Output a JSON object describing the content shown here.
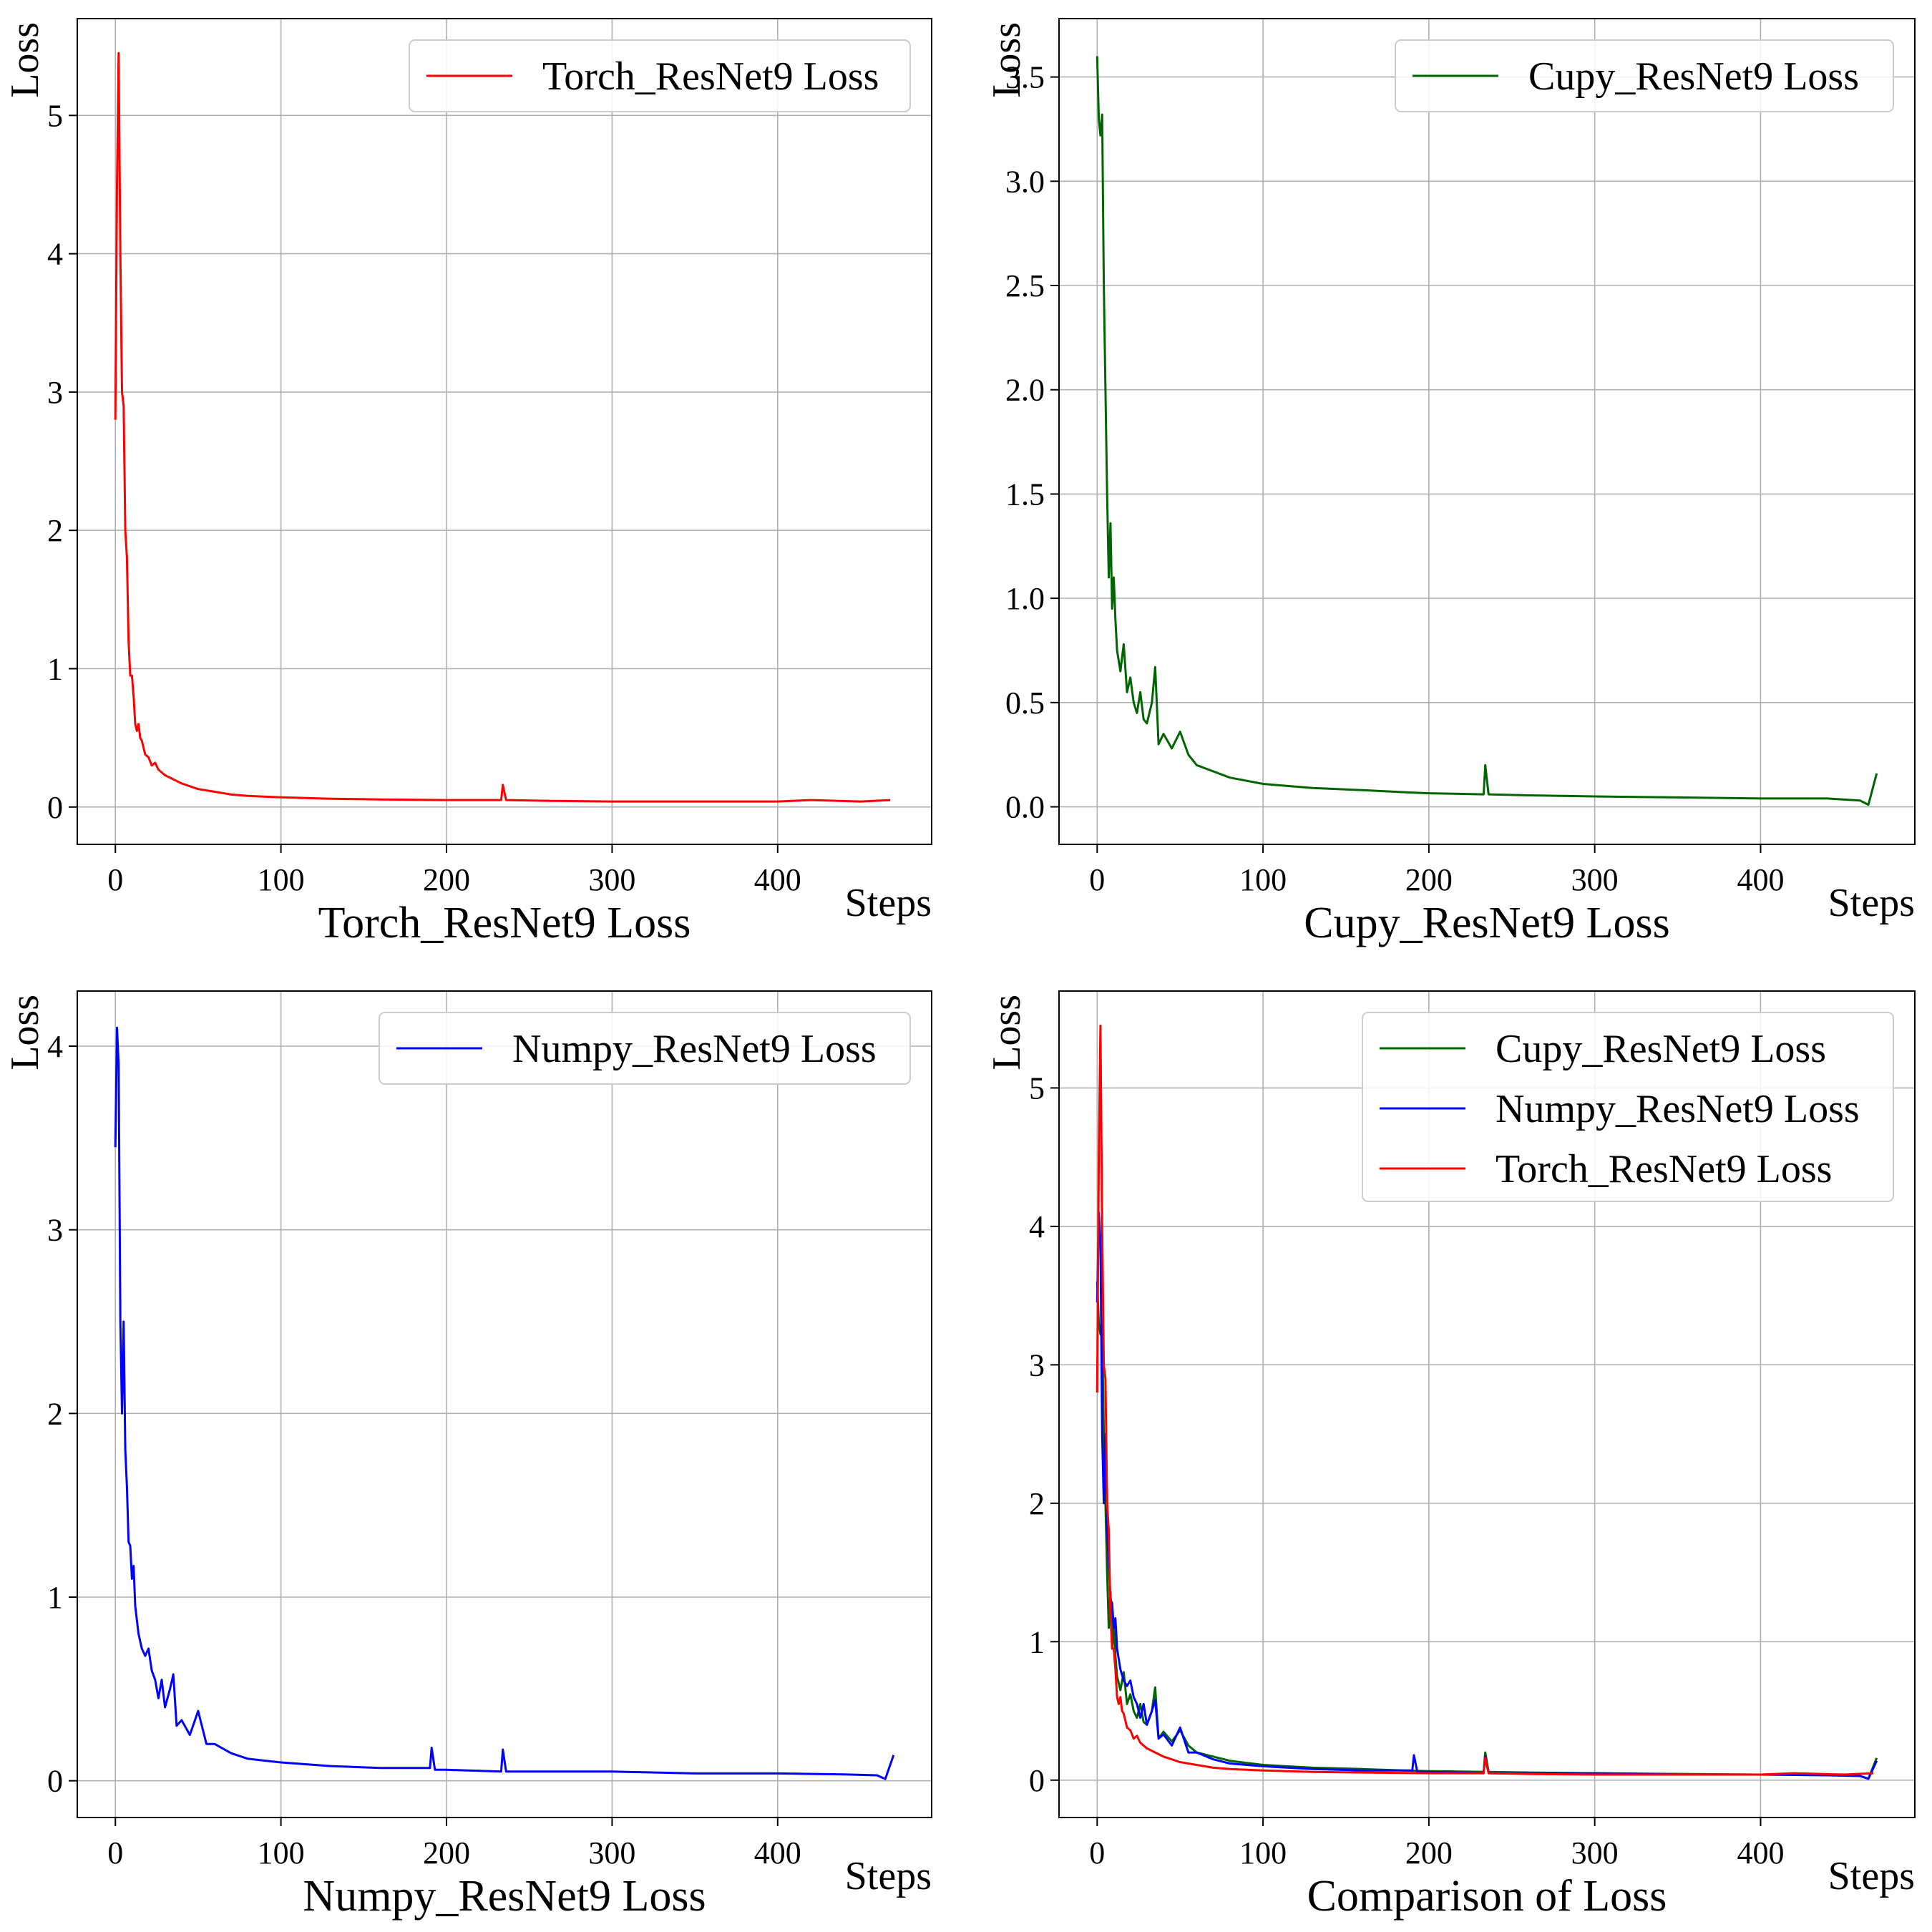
{
  "figure": {
    "background": "#ffffff",
    "grid_color": "#b0b0b0"
  },
  "chart_data": [
    {
      "type": "line",
      "title": "Torch_ResNet9 Loss",
      "xlabel": "Steps",
      "ylabel": "Loss",
      "xlim": [
        -23,
        493
      ],
      "ylim": [
        -0.27,
        5.7
      ],
      "xticks": [
        0,
        100,
        200,
        300,
        400
      ],
      "yticks": [
        0,
        1,
        2,
        3,
        4,
        5
      ],
      "ytick_labels": [
        "0",
        "1",
        "2",
        "3",
        "4",
        "5"
      ],
      "grid": true,
      "legend_position": "upper-right",
      "series": [
        {
          "name": "Torch_ResNet9 Loss",
          "color": "#ff0000",
          "key": "torch",
          "points": [
            [
              0,
              2.8
            ],
            [
              1,
              4.5
            ],
            [
              2,
              5.45
            ],
            [
              3,
              4.0
            ],
            [
              4,
              3.0
            ],
            [
              5,
              2.9
            ],
            [
              6,
              2.0
            ],
            [
              7,
              1.8
            ],
            [
              8,
              1.2
            ],
            [
              9,
              0.95
            ],
            [
              10,
              0.95
            ],
            [
              11,
              0.8
            ],
            [
              12,
              0.6
            ],
            [
              13,
              0.55
            ],
            [
              14,
              0.6
            ],
            [
              15,
              0.5
            ],
            [
              16,
              0.48
            ],
            [
              18,
              0.38
            ],
            [
              20,
              0.36
            ],
            [
              22,
              0.3
            ],
            [
              24,
              0.32
            ],
            [
              26,
              0.27
            ],
            [
              28,
              0.25
            ],
            [
              30,
              0.23
            ],
            [
              35,
              0.2
            ],
            [
              40,
              0.17
            ],
            [
              45,
              0.15
            ],
            [
              50,
              0.13
            ],
            [
              60,
              0.11
            ],
            [
              70,
              0.09
            ],
            [
              80,
              0.08
            ],
            [
              100,
              0.07
            ],
            [
              130,
              0.06
            ],
            [
              160,
              0.055
            ],
            [
              200,
              0.05
            ],
            [
              233,
              0.05
            ],
            [
              234,
              0.16
            ],
            [
              236,
              0.05
            ],
            [
              260,
              0.045
            ],
            [
              300,
              0.04
            ],
            [
              350,
              0.04
            ],
            [
              400,
              0.04
            ],
            [
              420,
              0.05
            ],
            [
              450,
              0.04
            ],
            [
              468,
              0.05
            ]
          ]
        }
      ]
    },
    {
      "type": "line",
      "title": "Cupy_ResNet9 Loss",
      "xlabel": "Steps",
      "ylabel": "Loss",
      "xlim": [
        -23,
        493
      ],
      "ylim": [
        -0.18,
        3.78
      ],
      "xticks": [
        0,
        100,
        200,
        300,
        400
      ],
      "yticks": [
        0,
        0.5,
        1.0,
        1.5,
        2.0,
        2.5,
        3.0,
        3.5
      ],
      "ytick_labels": [
        "0.0",
        "0.5",
        "1.0",
        "1.5",
        "2.0",
        "2.5",
        "3.0",
        "3.5"
      ],
      "grid": true,
      "legend_position": "upper-right",
      "series": [
        {
          "name": "Cupy_ResNet9 Loss",
          "color": "#006400",
          "key": "cupy",
          "points": [
            [
              0,
              3.6
            ],
            [
              1,
              3.3
            ],
            [
              2,
              3.22
            ],
            [
              3,
              3.32
            ],
            [
              4,
              2.5
            ],
            [
              5,
              2.0
            ],
            [
              6,
              1.5
            ],
            [
              7,
              1.1
            ],
            [
              8,
              1.36
            ],
            [
              9,
              0.95
            ],
            [
              10,
              1.1
            ],
            [
              11,
              0.9
            ],
            [
              12,
              0.75
            ],
            [
              14,
              0.65
            ],
            [
              16,
              0.78
            ],
            [
              18,
              0.55
            ],
            [
              20,
              0.62
            ],
            [
              22,
              0.5
            ],
            [
              24,
              0.45
            ],
            [
              26,
              0.55
            ],
            [
              28,
              0.42
            ],
            [
              30,
              0.4
            ],
            [
              33,
              0.5
            ],
            [
              35,
              0.67
            ],
            [
              37,
              0.3
            ],
            [
              40,
              0.35
            ],
            [
              45,
              0.28
            ],
            [
              50,
              0.36
            ],
            [
              55,
              0.25
            ],
            [
              60,
              0.2
            ],
            [
              70,
              0.17
            ],
            [
              80,
              0.14
            ],
            [
              100,
              0.11
            ],
            [
              130,
              0.09
            ],
            [
              160,
              0.08
            ],
            [
              185,
              0.07
            ],
            [
              200,
              0.065
            ],
            [
              233,
              0.06
            ],
            [
              234,
              0.2
            ],
            [
              236,
              0.06
            ],
            [
              260,
              0.055
            ],
            [
              300,
              0.05
            ],
            [
              350,
              0.045
            ],
            [
              400,
              0.04
            ],
            [
              440,
              0.04
            ],
            [
              460,
              0.03
            ],
            [
              465,
              0.01
            ],
            [
              470,
              0.16
            ]
          ]
        }
      ]
    },
    {
      "type": "line",
      "title": "Numpy_ResNet9 Loss",
      "xlabel": "Steps",
      "ylabel": "Loss",
      "xlim": [
        -23,
        493
      ],
      "ylim": [
        -0.2,
        4.3
      ],
      "xticks": [
        0,
        100,
        200,
        300,
        400
      ],
      "yticks": [
        0,
        1,
        2,
        3,
        4
      ],
      "ytick_labels": [
        "0",
        "1",
        "2",
        "3",
        "4"
      ],
      "grid": true,
      "legend_position": "upper-right",
      "series": [
        {
          "name": "Numpy_ResNet9 Loss",
          "color": "#0000ff",
          "key": "numpy",
          "points": [
            [
              0,
              3.45
            ],
            [
              1,
              4.1
            ],
            [
              2,
              3.9
            ],
            [
              3,
              2.5
            ],
            [
              4,
              2.0
            ],
            [
              5,
              2.5
            ],
            [
              6,
              1.8
            ],
            [
              7,
              1.6
            ],
            [
              8,
              1.3
            ],
            [
              9,
              1.28
            ],
            [
              10,
              1.1
            ],
            [
              11,
              1.17
            ],
            [
              12,
              0.95
            ],
            [
              14,
              0.8
            ],
            [
              16,
              0.72
            ],
            [
              18,
              0.68
            ],
            [
              20,
              0.72
            ],
            [
              22,
              0.6
            ],
            [
              24,
              0.55
            ],
            [
              26,
              0.45
            ],
            [
              28,
              0.55
            ],
            [
              30,
              0.4
            ],
            [
              33,
              0.5
            ],
            [
              35,
              0.58
            ],
            [
              37,
              0.3
            ],
            [
              40,
              0.33
            ],
            [
              45,
              0.25
            ],
            [
              50,
              0.38
            ],
            [
              55,
              0.2
            ],
            [
              60,
              0.2
            ],
            [
              70,
              0.15
            ],
            [
              80,
              0.12
            ],
            [
              100,
              0.1
            ],
            [
              130,
              0.08
            ],
            [
              160,
              0.07
            ],
            [
              190,
              0.07
            ],
            [
              191,
              0.18
            ],
            [
              193,
              0.06
            ],
            [
              200,
              0.06
            ],
            [
              233,
              0.05
            ],
            [
              234,
              0.17
            ],
            [
              236,
              0.05
            ],
            [
              260,
              0.05
            ],
            [
              300,
              0.05
            ],
            [
              350,
              0.04
            ],
            [
              400,
              0.04
            ],
            [
              440,
              0.035
            ],
            [
              460,
              0.03
            ],
            [
              465,
              0.01
            ],
            [
              470,
              0.14
            ]
          ]
        }
      ]
    },
    {
      "type": "line",
      "title": "Comparison of Loss",
      "xlabel": "Steps",
      "ylabel": "Loss",
      "xlim": [
        -23,
        493
      ],
      "ylim": [
        -0.27,
        5.7
      ],
      "xticks": [
        0,
        100,
        200,
        300,
        400
      ],
      "yticks": [
        0,
        1,
        2,
        3,
        4,
        5
      ],
      "ytick_labels": [
        "0",
        "1",
        "2",
        "3",
        "4",
        "5"
      ],
      "grid": true,
      "legend_position": "upper-right",
      "series": [
        {
          "name": "Cupy_ResNet9 Loss",
          "color": "#006400",
          "key": "cupy",
          "ref": 1
        },
        {
          "name": "Numpy_ResNet9 Loss",
          "color": "#0000ff",
          "key": "numpy",
          "ref": 2
        },
        {
          "name": "Torch_ResNet9 Loss",
          "color": "#ff0000",
          "key": "torch",
          "ref": 0
        }
      ]
    }
  ]
}
